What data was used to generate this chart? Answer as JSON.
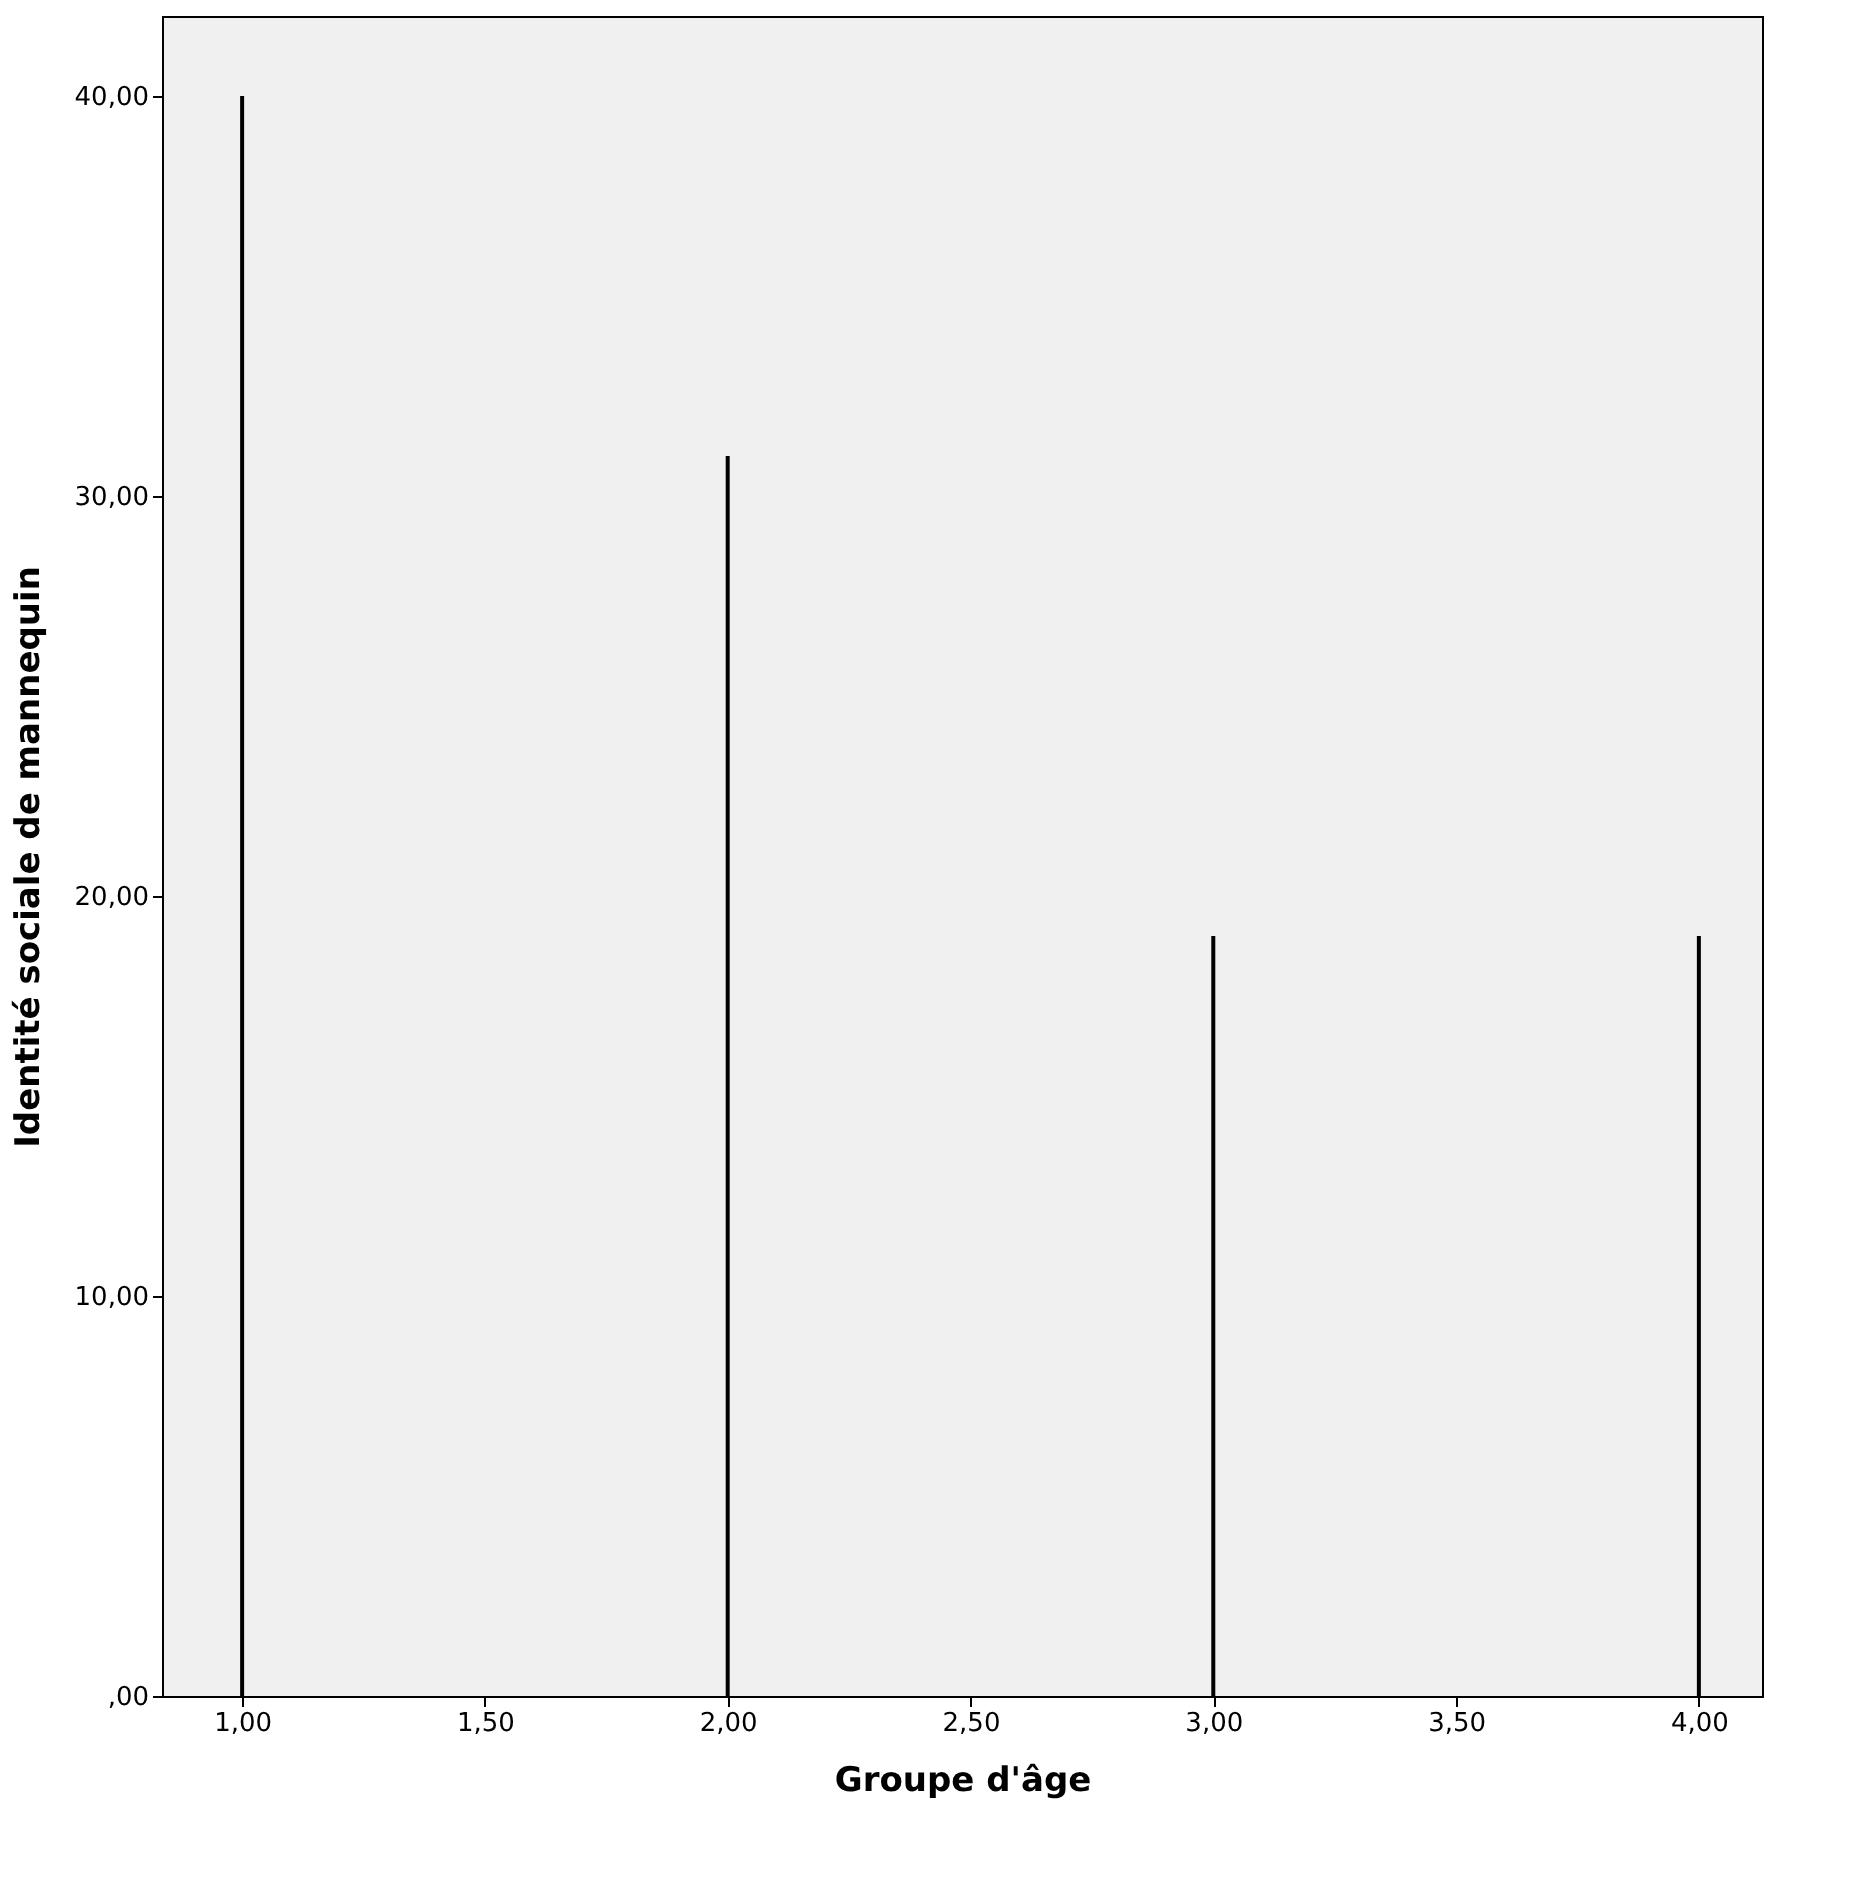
{
  "chart_data": {
    "type": "bar",
    "x": [
      1,
      2,
      3,
      4
    ],
    "values": [
      40,
      31,
      19,
      19
    ],
    "color": "#000000",
    "xlabel": "Groupe d'âge",
    "ylabel": "Identité sociale de mannequin",
    "xlim": [
      0.835,
      4.13
    ],
    "ylim": [
      0,
      42
    ],
    "xticks": [
      {
        "value": 1,
        "label": "1,00"
      },
      {
        "value": 1.5,
        "label": "1,50"
      },
      {
        "value": 2,
        "label": "2,00"
      },
      {
        "value": 2.5,
        "label": "2,50"
      },
      {
        "value": 3,
        "label": "3,00"
      },
      {
        "value": 3.5,
        "label": "3,50"
      },
      {
        "value": 4,
        "label": "4,00"
      }
    ],
    "yticks": [
      {
        "value": 0,
        "label": ",00"
      },
      {
        "value": 10,
        "label": "10,00"
      },
      {
        "value": 20,
        "label": "20,00"
      },
      {
        "value": 30,
        "label": "30,00"
      },
      {
        "value": 40,
        "label": "40,00"
      }
    ],
    "grid": false
  }
}
